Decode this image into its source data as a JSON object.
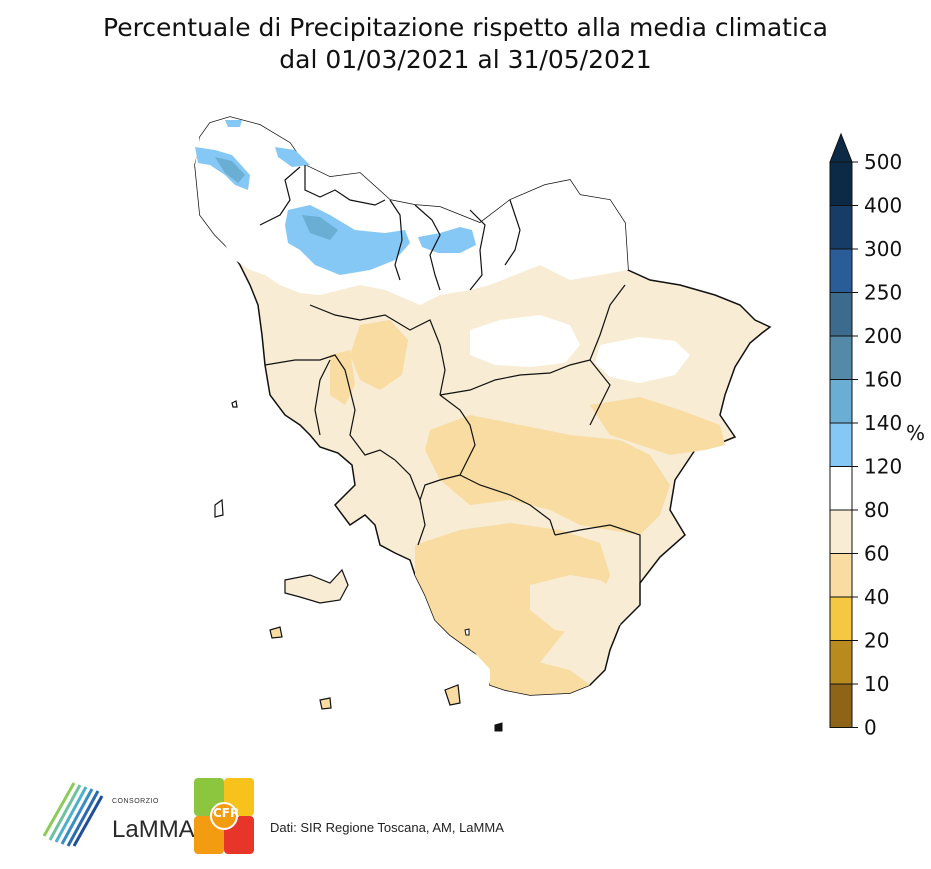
{
  "title": {
    "line1": "Percentuale di Precipitazione rispetto alla media climatica",
    "line2": "dal 01/03/2021 al 31/05/2021"
  },
  "colorbar": {
    "unit": "%",
    "ticks": [
      "500",
      "400",
      "300",
      "250",
      "200",
      "160",
      "140",
      "120",
      "80",
      "60",
      "40",
      "20",
      "10",
      "0"
    ],
    "colors": [
      "#0c2a45",
      "#173c66",
      "#2a5c98",
      "#3d6b8d",
      "#5589a8",
      "#6aaed3",
      "#86c8f5",
      "#ffffff",
      "#f8ecd4",
      "#f8dca2",
      "#f5c842",
      "#b98a1e",
      "#8d6418",
      "#614f0c"
    ]
  },
  "legend": {
    "credits": "Dati: SIR Regione Toscana, AM, LaMMA",
    "lamma_small": "CONSORZIO",
    "lamma": "LaMMA",
    "cfr": "CFR"
  }
}
